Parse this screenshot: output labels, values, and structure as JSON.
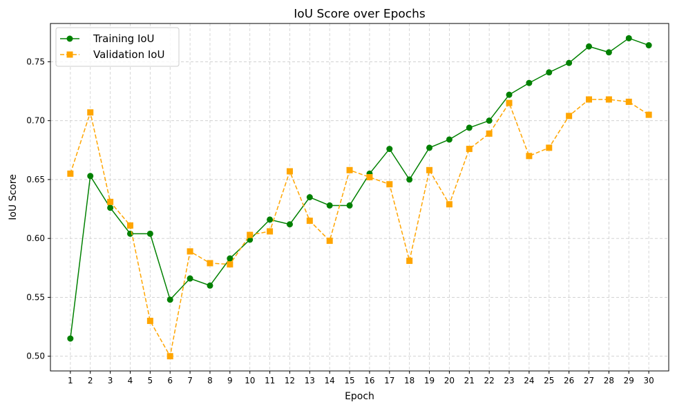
{
  "chart_data": {
    "type": "line",
    "title": "IoU Score over Epochs",
    "xlabel": "Epoch",
    "ylabel": "IoU Score",
    "x": [
      1,
      2,
      3,
      4,
      5,
      6,
      7,
      8,
      9,
      10,
      11,
      12,
      13,
      14,
      15,
      16,
      17,
      18,
      19,
      20,
      21,
      22,
      23,
      24,
      25,
      26,
      27,
      28,
      29,
      30
    ],
    "xlim": [
      0,
      31
    ],
    "ylim": [
      0.4875,
      0.7825
    ],
    "yticks": [
      0.5,
      0.55,
      0.6,
      0.65,
      0.7,
      0.75
    ],
    "ytick_labels": [
      "0.50",
      "0.55",
      "0.60",
      "0.65",
      "0.70",
      "0.75"
    ],
    "grid": true,
    "grid_style": "dashed",
    "legend_position": "top-left",
    "series": [
      {
        "name": "Training IoU",
        "color": "#008000",
        "line_style": "solid",
        "marker": "circle",
        "values": [
          0.515,
          0.653,
          0.626,
          0.604,
          0.604,
          0.548,
          0.566,
          0.56,
          0.583,
          0.599,
          0.616,
          0.612,
          0.635,
          0.628,
          0.628,
          0.655,
          0.676,
          0.65,
          0.677,
          0.684,
          0.694,
          0.7,
          0.722,
          0.732,
          0.741,
          0.749,
          0.763,
          0.758,
          0.77,
          0.764
        ]
      },
      {
        "name": "Validation IoU",
        "color": "#FFA500",
        "line_style": "dashed",
        "marker": "square",
        "values": [
          0.655,
          0.707,
          0.631,
          0.611,
          0.53,
          0.5,
          0.589,
          0.579,
          0.578,
          0.603,
          0.606,
          0.657,
          0.615,
          0.598,
          0.658,
          0.652,
          0.646,
          0.581,
          0.658,
          0.629,
          0.676,
          0.689,
          0.715,
          0.67,
          0.677,
          0.704,
          0.718,
          0.718,
          0.716,
          0.705
        ]
      }
    ]
  }
}
